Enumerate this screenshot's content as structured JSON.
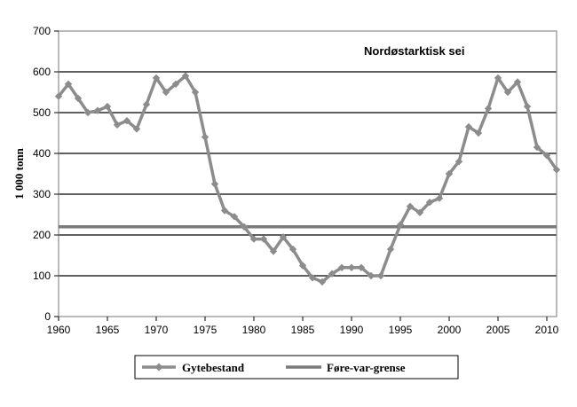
{
  "chart_data": {
    "type": "line",
    "annotation": "Nordøstarktisk sei",
    "ylabel": "1 000 tonn",
    "xlabel": "",
    "xlim": [
      1960,
      2011
    ],
    "ylim": [
      0,
      700
    ],
    "xticks": [
      1960,
      1965,
      1970,
      1975,
      1980,
      1985,
      1990,
      1995,
      2000,
      2005,
      2010
    ],
    "yticks": [
      0,
      100,
      200,
      300,
      400,
      500,
      600,
      700
    ],
    "grid": "horizontal",
    "legend_position": "bottom",
    "colors": {
      "series": "#8c8c8c",
      "reference": "#7a7a7a",
      "grid": "#000000",
      "frame": "#8c8c8c"
    },
    "series": [
      {
        "name": "Gytebestand",
        "marker": "diamond",
        "x": [
          1960,
          1961,
          1962,
          1963,
          1964,
          1965,
          1966,
          1967,
          1968,
          1969,
          1970,
          1971,
          1972,
          1973,
          1974,
          1975,
          1976,
          1977,
          1978,
          1979,
          1980,
          1981,
          1982,
          1983,
          1984,
          1985,
          1986,
          1987,
          1988,
          1989,
          1990,
          1991,
          1992,
          1993,
          1994,
          1995,
          1996,
          1997,
          1998,
          1999,
          2000,
          2001,
          2002,
          2003,
          2004,
          2005,
          2006,
          2007,
          2008,
          2009,
          2010,
          2011
        ],
        "values": [
          540,
          570,
          535,
          500,
          505,
          515,
          470,
          480,
          460,
          520,
          585,
          550,
          570,
          590,
          550,
          440,
          325,
          260,
          245,
          220,
          190,
          190,
          160,
          195,
          165,
          125,
          95,
          85,
          105,
          120,
          120,
          120,
          100,
          100,
          165,
          225,
          270,
          255,
          280,
          290,
          350,
          380,
          465,
          450,
          510,
          585,
          550,
          575,
          515,
          415,
          395,
          360
        ]
      },
      {
        "name": "Føre-var-grense",
        "marker": "none",
        "x": [
          1960,
          2011
        ],
        "values": [
          220,
          220
        ]
      }
    ]
  }
}
